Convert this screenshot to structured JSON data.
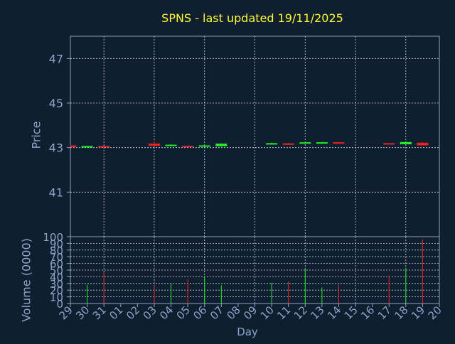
{
  "colors": {
    "background": "#0f1f30",
    "axis": "#8aa4c8",
    "grid": "#c8d4e4",
    "title": "#ffff33",
    "label": "#8aa4c8",
    "up": "#22ee22",
    "down": "#ee2222"
  },
  "chart_data": {
    "type": "candlestick",
    "title": "SPNS - last updated 19/11/2025",
    "price_panel": {
      "ylabel": "Price",
      "ylim": [
        39.0,
        48.0
      ],
      "yticks": [
        41,
        43,
        45,
        47
      ],
      "grid": true
    },
    "volume_panel": {
      "ylabel": "Volume (0000)",
      "ylim": [
        0,
        100
      ],
      "yticks": [
        0,
        10,
        20,
        30,
        40,
        50,
        60,
        70,
        80,
        90,
        100
      ],
      "grid": true
    },
    "xlabel": "Day",
    "x_ticks": [
      "29",
      "30",
      "31",
      "01",
      "02",
      "03",
      "04",
      "05",
      "06",
      "07",
      "08",
      "09",
      "10",
      "11",
      "12",
      "13",
      "14",
      "15",
      "16",
      "17",
      "18",
      "19",
      "20"
    ],
    "x_gridlines": [
      "31",
      "03",
      "06",
      "09",
      "12",
      "15",
      "18"
    ],
    "candles": [
      {
        "day": "29",
        "open": 43.1,
        "close": 43.02,
        "high": 43.12,
        "low": 43.0,
        "volume": 0,
        "direction": "down"
      },
      {
        "day": "30",
        "open": 43.03,
        "close": 43.07,
        "high": 43.08,
        "low": 43.02,
        "volume": 28,
        "direction": "up"
      },
      {
        "day": "31",
        "open": 43.07,
        "close": 43.03,
        "high": 43.08,
        "low": 43.02,
        "volume": 47,
        "direction": "down"
      },
      {
        "day": "03",
        "open": 43.18,
        "close": 43.08,
        "high": 43.28,
        "low": 43.03,
        "volume": 27,
        "direction": "down"
      },
      {
        "day": "04",
        "open": 43.08,
        "close": 43.13,
        "high": 43.15,
        "low": 43.07,
        "volume": 30,
        "direction": "up"
      },
      {
        "day": "05",
        "open": 43.08,
        "close": 43.05,
        "high": 43.1,
        "low": 43.04,
        "volume": 36,
        "direction": "down"
      },
      {
        "day": "06",
        "open": 43.05,
        "close": 43.1,
        "high": 43.12,
        "low": 43.03,
        "volume": 41,
        "direction": "up"
      },
      {
        "day": "07",
        "open": 43.06,
        "close": 43.18,
        "high": 43.19,
        "low": 43.05,
        "volume": 27,
        "direction": "up"
      },
      {
        "day": "10",
        "open": 43.15,
        "close": 43.2,
        "high": 43.22,
        "low": 43.14,
        "volume": 31,
        "direction": "up"
      },
      {
        "day": "11",
        "open": 43.19,
        "close": 43.17,
        "high": 43.21,
        "low": 43.16,
        "volume": 33,
        "direction": "down"
      },
      {
        "day": "12",
        "open": 43.19,
        "close": 43.24,
        "high": 43.25,
        "low": 43.18,
        "volume": 52,
        "direction": "up"
      },
      {
        "day": "13",
        "open": 43.18,
        "close": 43.24,
        "high": 43.26,
        "low": 43.17,
        "volume": 24,
        "direction": "up"
      },
      {
        "day": "14",
        "open": 43.24,
        "close": 43.2,
        "high": 43.25,
        "low": 43.19,
        "volume": 28,
        "direction": "down"
      },
      {
        "day": "17",
        "open": 43.2,
        "close": 43.17,
        "high": 43.21,
        "low": 43.16,
        "volume": 42,
        "direction": "down"
      },
      {
        "day": "18",
        "open": 43.15,
        "close": 43.25,
        "high": 43.27,
        "low": 43.13,
        "volume": 53,
        "direction": "up"
      },
      {
        "day": "19",
        "open": 43.22,
        "close": 43.1,
        "high": 43.24,
        "low": 43.08,
        "volume": 96,
        "direction": "down"
      }
    ]
  }
}
